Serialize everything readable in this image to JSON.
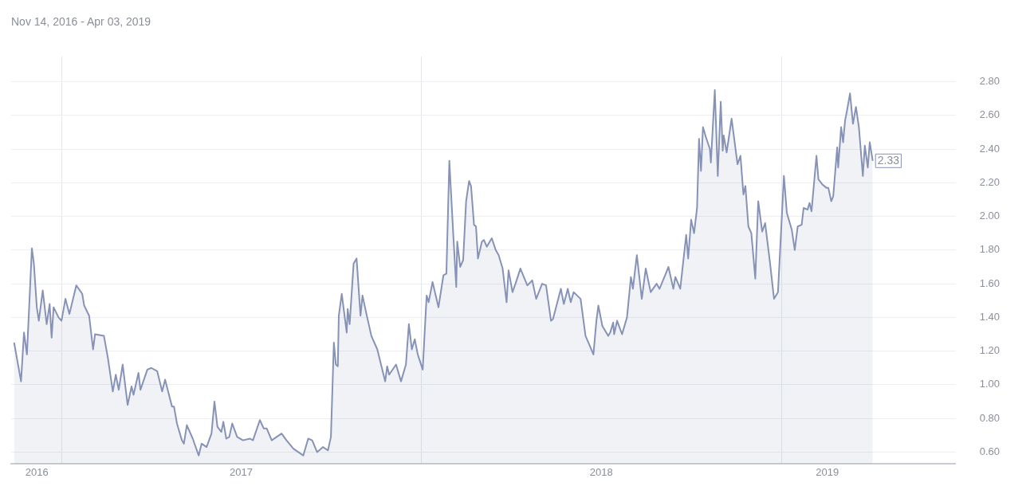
{
  "chart_data": {
    "type": "area",
    "title": "Nov 14, 2016 - Apr 03, 2019",
    "x": [
      "2016-11-14",
      "2016-11-21",
      "2016-11-24",
      "2016-11-27",
      "2016-12-02",
      "2016-12-04",
      "2016-12-07",
      "2016-12-09",
      "2016-12-13",
      "2016-12-17",
      "2016-12-20",
      "2016-12-22",
      "2016-12-24",
      "2016-12-29",
      "2017-01-01",
      "2017-01-05",
      "2017-01-09",
      "2017-01-16",
      "2017-01-22",
      "2017-01-24",
      "2017-01-29",
      "2017-02-02",
      "2017-02-04",
      "2017-02-13",
      "2017-02-17",
      "2017-02-22",
      "2017-02-25",
      "2017-02-28",
      "2017-03-04",
      "2017-03-09",
      "2017-03-13",
      "2017-03-15",
      "2017-03-20",
      "2017-03-22",
      "2017-03-29",
      "2017-04-02",
      "2017-04-08",
      "2017-04-13",
      "2017-04-16",
      "2017-04-23",
      "2017-04-25",
      "2017-04-28",
      "2017-05-03",
      "2017-05-05",
      "2017-05-08",
      "2017-05-14",
      "2017-05-20",
      "2017-05-23",
      "2017-05-28",
      "2017-06-02",
      "2017-06-05",
      "2017-06-08",
      "2017-06-12",
      "2017-06-14",
      "2017-06-17",
      "2017-06-20",
      "2017-06-23",
      "2017-06-28",
      "2017-07-04",
      "2017-07-11",
      "2017-07-14",
      "2017-07-21",
      "2017-07-25",
      "2017-07-28",
      "2017-08-02",
      "2017-08-12",
      "2017-08-17",
      "2017-08-24",
      "2017-09-03",
      "2017-09-08",
      "2017-09-12",
      "2017-09-17",
      "2017-09-23",
      "2017-09-28",
      "2017-10-01",
      "2017-10-04",
      "2017-10-06",
      "2017-10-08",
      "2017-10-09",
      "2017-10-12",
      "2017-10-17",
      "2017-10-18",
      "2017-10-20",
      "2017-10-24",
      "2017-10-27",
      "2017-10-31",
      "2017-11-02",
      "2017-11-06",
      "2017-11-11",
      "2017-11-17",
      "2017-11-25",
      "2017-11-27",
      "2017-11-29",
      "2017-12-06",
      "2017-12-11",
      "2017-12-16",
      "2017-12-19",
      "2017-12-22",
      "2017-12-25",
      "2017-12-28",
      "2018-01-02",
      "2018-01-06",
      "2018-01-08",
      "2018-01-12",
      "2018-01-18",
      "2018-01-23",
      "2018-01-26",
      "2018-01-29",
      "2018-02-02",
      "2018-02-05",
      "2018-02-06",
      "2018-02-09",
      "2018-02-12",
      "2018-02-15",
      "2018-02-18",
      "2018-02-20",
      "2018-02-23",
      "2018-02-25",
      "2018-02-27",
      "2018-03-03",
      "2018-03-05",
      "2018-03-08",
      "2018-03-13",
      "2018-03-17",
      "2018-03-20",
      "2018-03-24",
      "2018-03-28",
      "2018-03-30",
      "2018-04-03",
      "2018-04-06",
      "2018-04-11",
      "2018-04-18",
      "2018-04-23",
      "2018-04-27",
      "2018-05-03",
      "2018-05-07",
      "2018-05-12",
      "2018-05-14",
      "2018-05-22",
      "2018-05-25",
      "2018-05-29",
      "2018-06-01",
      "2018-06-04",
      "2018-06-11",
      "2018-06-16",
      "2018-06-19",
      "2018-06-24",
      "2018-06-27",
      "2018-06-29",
      "2018-07-03",
      "2018-07-09",
      "2018-07-11",
      "2018-07-14",
      "2018-07-15",
      "2018-07-18",
      "2018-07-23",
      "2018-07-28",
      "2018-08-01",
      "2018-08-03",
      "2018-08-07",
      "2018-08-12",
      "2018-08-16",
      "2018-08-21",
      "2018-08-27",
      "2018-08-30",
      "2018-09-06",
      "2018-09-08",
      "2018-09-13",
      "2018-09-15",
      "2018-09-20",
      "2018-09-26",
      "2018-09-28",
      "2018-10-01",
      "2018-10-04",
      "2018-10-07",
      "2018-10-09",
      "2018-10-11",
      "2018-10-13",
      "2018-10-16",
      "2018-10-20",
      "2018-10-21",
      "2018-10-25",
      "2018-10-28",
      "2018-10-31",
      "2018-11-02",
      "2018-11-03",
      "2018-11-06",
      "2018-11-11",
      "2018-11-17",
      "2018-11-20",
      "2018-11-23",
      "2018-11-25",
      "2018-11-28",
      "2018-12-01",
      "2018-12-05",
      "2018-12-08",
      "2018-12-12",
      "2018-12-15",
      "2018-12-20",
      "2018-12-24",
      "2018-12-28",
      "2019-01-03",
      "2019-01-06",
      "2019-01-11",
      "2019-01-14",
      "2019-01-17",
      "2019-01-21",
      "2019-01-23",
      "2019-01-27",
      "2019-01-29",
      "2019-01-31",
      "2019-02-05",
      "2019-02-07",
      "2019-02-11",
      "2019-02-15",
      "2019-02-17",
      "2019-02-20",
      "2019-02-22",
      "2019-02-26",
      "2019-02-27",
      "2019-03-02",
      "2019-03-04",
      "2019-03-06",
      "2019-03-08",
      "2019-03-11",
      "2019-03-14",
      "2019-03-17",
      "2019-03-20",
      "2019-03-24",
      "2019-03-26",
      "2019-03-29",
      "2019-03-31",
      "2019-04-03"
    ],
    "series": [
      {
        "color": "#8793b6",
        "values": [
          1.25,
          1.02,
          1.31,
          1.18,
          1.81,
          1.72,
          1.46,
          1.38,
          1.56,
          1.36,
          1.48,
          1.28,
          1.46,
          1.4,
          1.38,
          1.51,
          1.42,
          1.59,
          1.54,
          1.47,
          1.41,
          1.21,
          1.3,
          1.29,
          1.16,
          0.96,
          1.06,
          0.97,
          1.12,
          0.88,
          0.99,
          0.94,
          1.07,
          0.97,
          1.09,
          1.1,
          1.08,
          0.96,
          1.03,
          0.87,
          0.87,
          0.77,
          0.67,
          0.65,
          0.76,
          0.68,
          0.58,
          0.65,
          0.63,
          0.71,
          0.9,
          0.75,
          0.72,
          0.78,
          0.68,
          0.69,
          0.77,
          0.69,
          0.67,
          0.68,
          0.67,
          0.79,
          0.74,
          0.74,
          0.67,
          0.71,
          0.67,
          0.62,
          0.58,
          0.68,
          0.67,
          0.6,
          0.63,
          0.61,
          0.69,
          1.25,
          1.12,
          1.11,
          1.41,
          1.54,
          1.31,
          1.45,
          1.36,
          1.72,
          1.75,
          1.41,
          1.53,
          1.42,
          1.29,
          1.21,
          1.02,
          1.11,
          1.06,
          1.12,
          1.02,
          1.12,
          1.36,
          1.21,
          1.27,
          1.18,
          1.09,
          1.53,
          1.49,
          1.61,
          1.46,
          1.65,
          1.66,
          2.33,
          1.89,
          1.58,
          1.85,
          1.7,
          1.74,
          2.09,
          2.21,
          2.18,
          1.95,
          1.94,
          1.75,
          1.85,
          1.86,
          1.82,
          1.87,
          1.8,
          1.77,
          1.69,
          1.49,
          1.68,
          1.55,
          1.6,
          1.69,
          1.59,
          1.62,
          1.51,
          1.6,
          1.59,
          1.38,
          1.39,
          1.57,
          1.48,
          1.57,
          1.49,
          1.55,
          1.51,
          1.29,
          1.25,
          1.18,
          1.38,
          1.47,
          1.35,
          1.29,
          1.31,
          1.37,
          1.3,
          1.38,
          1.3,
          1.4,
          1.64,
          1.57,
          1.77,
          1.51,
          1.69,
          1.55,
          1.6,
          1.57,
          1.67,
          1.7,
          1.57,
          1.64,
          1.57,
          1.89,
          1.75,
          1.98,
          1.9,
          2.05,
          2.46,
          2.27,
          2.53,
          2.47,
          2.4,
          2.32,
          2.75,
          2.24,
          2.68,
          2.39,
          2.48,
          2.38,
          2.58,
          2.31,
          2.36,
          2.13,
          2.18,
          1.94,
          1.9,
          1.63,
          2.09,
          1.91,
          1.96,
          1.72,
          1.51,
          1.55,
          2.24,
          2.02,
          1.92,
          1.8,
          1.94,
          1.95,
          2.05,
          2.04,
          2.08,
          2.03,
          2.36,
          2.22,
          2.19,
          2.17,
          2.17,
          2.09,
          2.12,
          2.41,
          2.29,
          2.53,
          2.44,
          2.57,
          2.63,
          2.73,
          2.55,
          2.65,
          2.53,
          2.24,
          2.42,
          2.29,
          2.44,
          2.33
        ]
      }
    ],
    "xlim": [
      "2016-11-11",
      "2019-06-26"
    ],
    "xticks": [
      {
        "value": "2016-12-07",
        "label": "2016"
      },
      {
        "value": "2017-01-01",
        "label": null
      },
      {
        "value": "2017-07-02",
        "label": "2017"
      },
      {
        "value": "2018-01-01",
        "label": null
      },
      {
        "value": "2018-07-02",
        "label": "2018"
      },
      {
        "value": "2019-01-01",
        "label": null
      },
      {
        "value": "2019-02-16",
        "label": "2019"
      }
    ],
    "ylim": [
      0.53,
      2.95
    ],
    "yticks": [
      {
        "value": 0.6,
        "label": "0.60"
      },
      {
        "value": 0.8,
        "label": "0.80"
      },
      {
        "value": 1.0,
        "label": "1.00"
      },
      {
        "value": 1.2,
        "label": "1.20"
      },
      {
        "value": 1.4,
        "label": "1.40"
      },
      {
        "value": 1.6,
        "label": "1.60"
      },
      {
        "value": 1.8,
        "label": "1.80"
      },
      {
        "value": 2.0,
        "label": "2.00"
      },
      {
        "value": 2.2,
        "label": "2.20"
      },
      {
        "value": 2.4,
        "label": "2.40"
      },
      {
        "value": 2.6,
        "label": "2.60"
      },
      {
        "value": 2.8,
        "label": "2.80"
      }
    ],
    "grid": true,
    "annotations": [
      {
        "text": "2.33",
        "x": "2019-04-03",
        "y": 2.33
      }
    ]
  }
}
